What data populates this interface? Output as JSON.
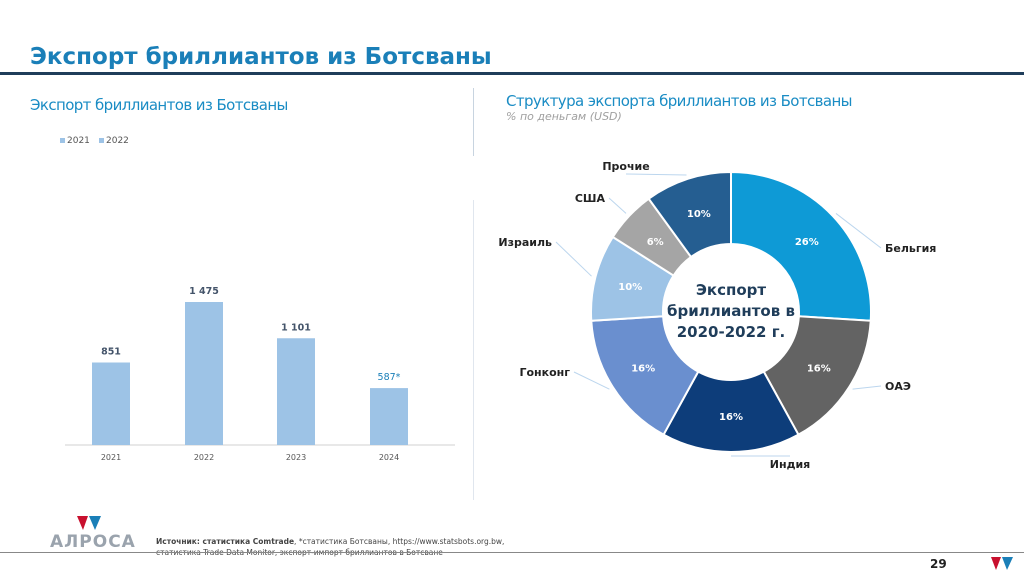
{
  "title": "Экспорт бриллиантов из Ботсваны",
  "left_subtitle": "Экспорт бриллиантов из Ботсваны",
  "right_subtitle": "Структура экспорта бриллиантов из Ботсваны",
  "right_note": "% по деньгам (USD)",
  "footer": {
    "source_bold": "Источник: статистика Comtrade",
    "source_rest": ", *статистика Ботсваны, https://www.statsbots.org.bw,",
    "source_line2": "статистика Trade Data Monitor, экспорт-импорт бриллиантов в Ботсване",
    "logo": "АЛРОСА",
    "page": "29"
  },
  "chart_data": [
    {
      "type": "bar",
      "title": "Экспорт бриллиантов из Ботсваны",
      "legend": [
        "2021",
        "2022"
      ],
      "legend_position": "top-left",
      "categories": [
        "2021",
        "2022",
        "2023",
        "2024"
      ],
      "values": [
        851,
        1475,
        1101,
        587
      ],
      "labels": [
        "851",
        "1 475",
        "1 101",
        "587*"
      ],
      "ylim": [
        0,
        1600
      ],
      "color": "#9dc3e6"
    },
    {
      "type": "pie",
      "title": "Структура экспорта бриллиантов из Ботсваны",
      "center_text": "Экспорт бриллиантов в 2020-2022 г.",
      "slices": [
        {
          "label": "Бельгия",
          "value": 26,
          "color": "#0e9ad6"
        },
        {
          "label": "ОАЭ",
          "value": 16,
          "color": "#636363"
        },
        {
          "label": "Индия",
          "value": 16,
          "color": "#0d3d7a"
        },
        {
          "label": "Гонконг",
          "value": 16,
          "color": "#6a8fcf"
        },
        {
          "label": "Израиль",
          "value": 10,
          "color": "#9dc3e6"
        },
        {
          "label": "США",
          "value": 6,
          "color": "#a5a5a5"
        },
        {
          "label": "Прочие",
          "value": 10,
          "color": "#255e91"
        }
      ]
    }
  ]
}
